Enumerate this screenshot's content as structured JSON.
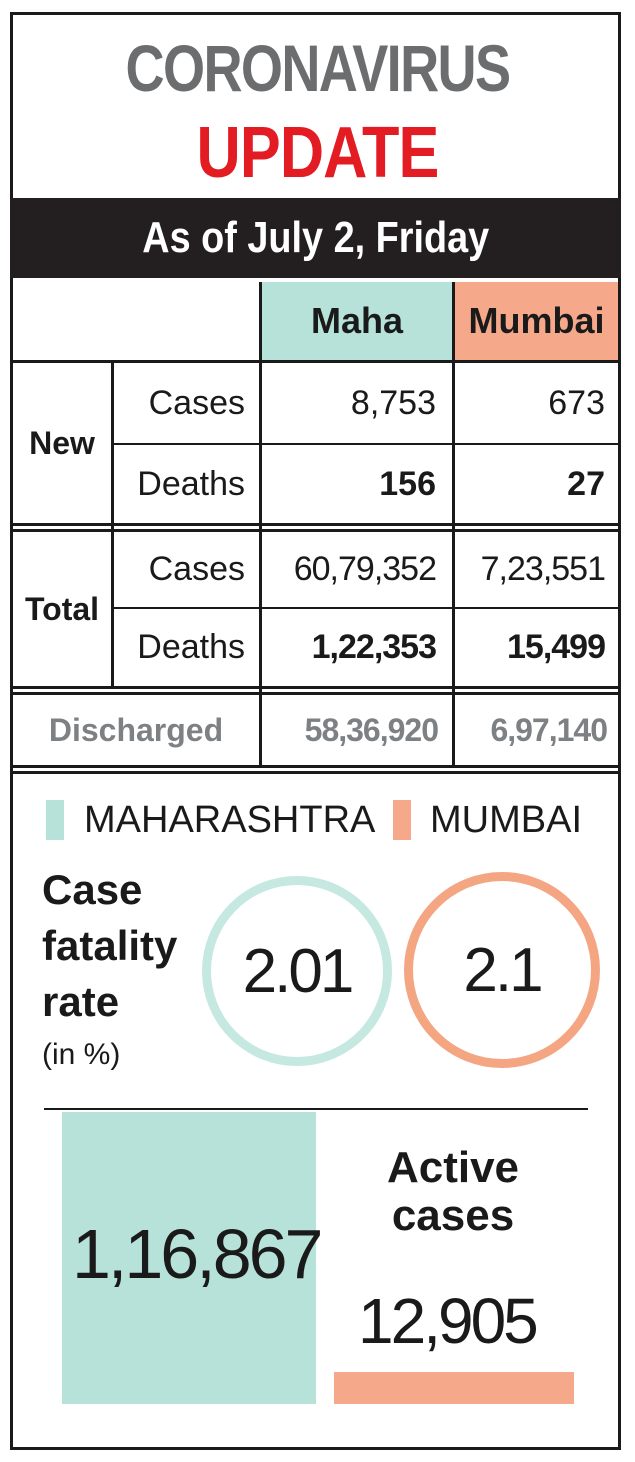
{
  "title": {
    "line1": "CORONAVIRUS",
    "line2": "UPDATE"
  },
  "date": "As of July 2, Friday",
  "colors": {
    "maharashtra": "#b6e2d9",
    "mumbai": "#f6a98a",
    "update_red": "#e31b23",
    "banner": "#231f20"
  },
  "table": {
    "headers": [
      "Maha",
      "Mumbai"
    ],
    "groups": [
      {
        "label": "New",
        "rows": [
          {
            "label": "Cases",
            "maha": "8,753",
            "mumbai": "673"
          },
          {
            "label": "Deaths",
            "maha": "156",
            "mumbai": "27"
          }
        ]
      },
      {
        "label": "Total",
        "rows": [
          {
            "label": "Cases",
            "maha": "60,79,352",
            "mumbai": "7,23,551"
          },
          {
            "label": "Deaths",
            "maha": "1,22,353",
            "mumbai": "15,499"
          }
        ]
      }
    ],
    "discharged": {
      "label": "Discharged",
      "maha": "58,36,920",
      "mumbai": "6,97,140"
    }
  },
  "legend": [
    "MAHARASHTRA",
    "MUMBAI"
  ],
  "cfr": {
    "label_lines": [
      "Case",
      "fatality",
      "rate"
    ],
    "unit": "(in %)",
    "maharashtra": "2.01",
    "mumbai": "2.1"
  },
  "active": {
    "label_lines": [
      "Active",
      "cases"
    ],
    "maharashtra": "1,16,867",
    "mumbai": "12,905"
  }
}
